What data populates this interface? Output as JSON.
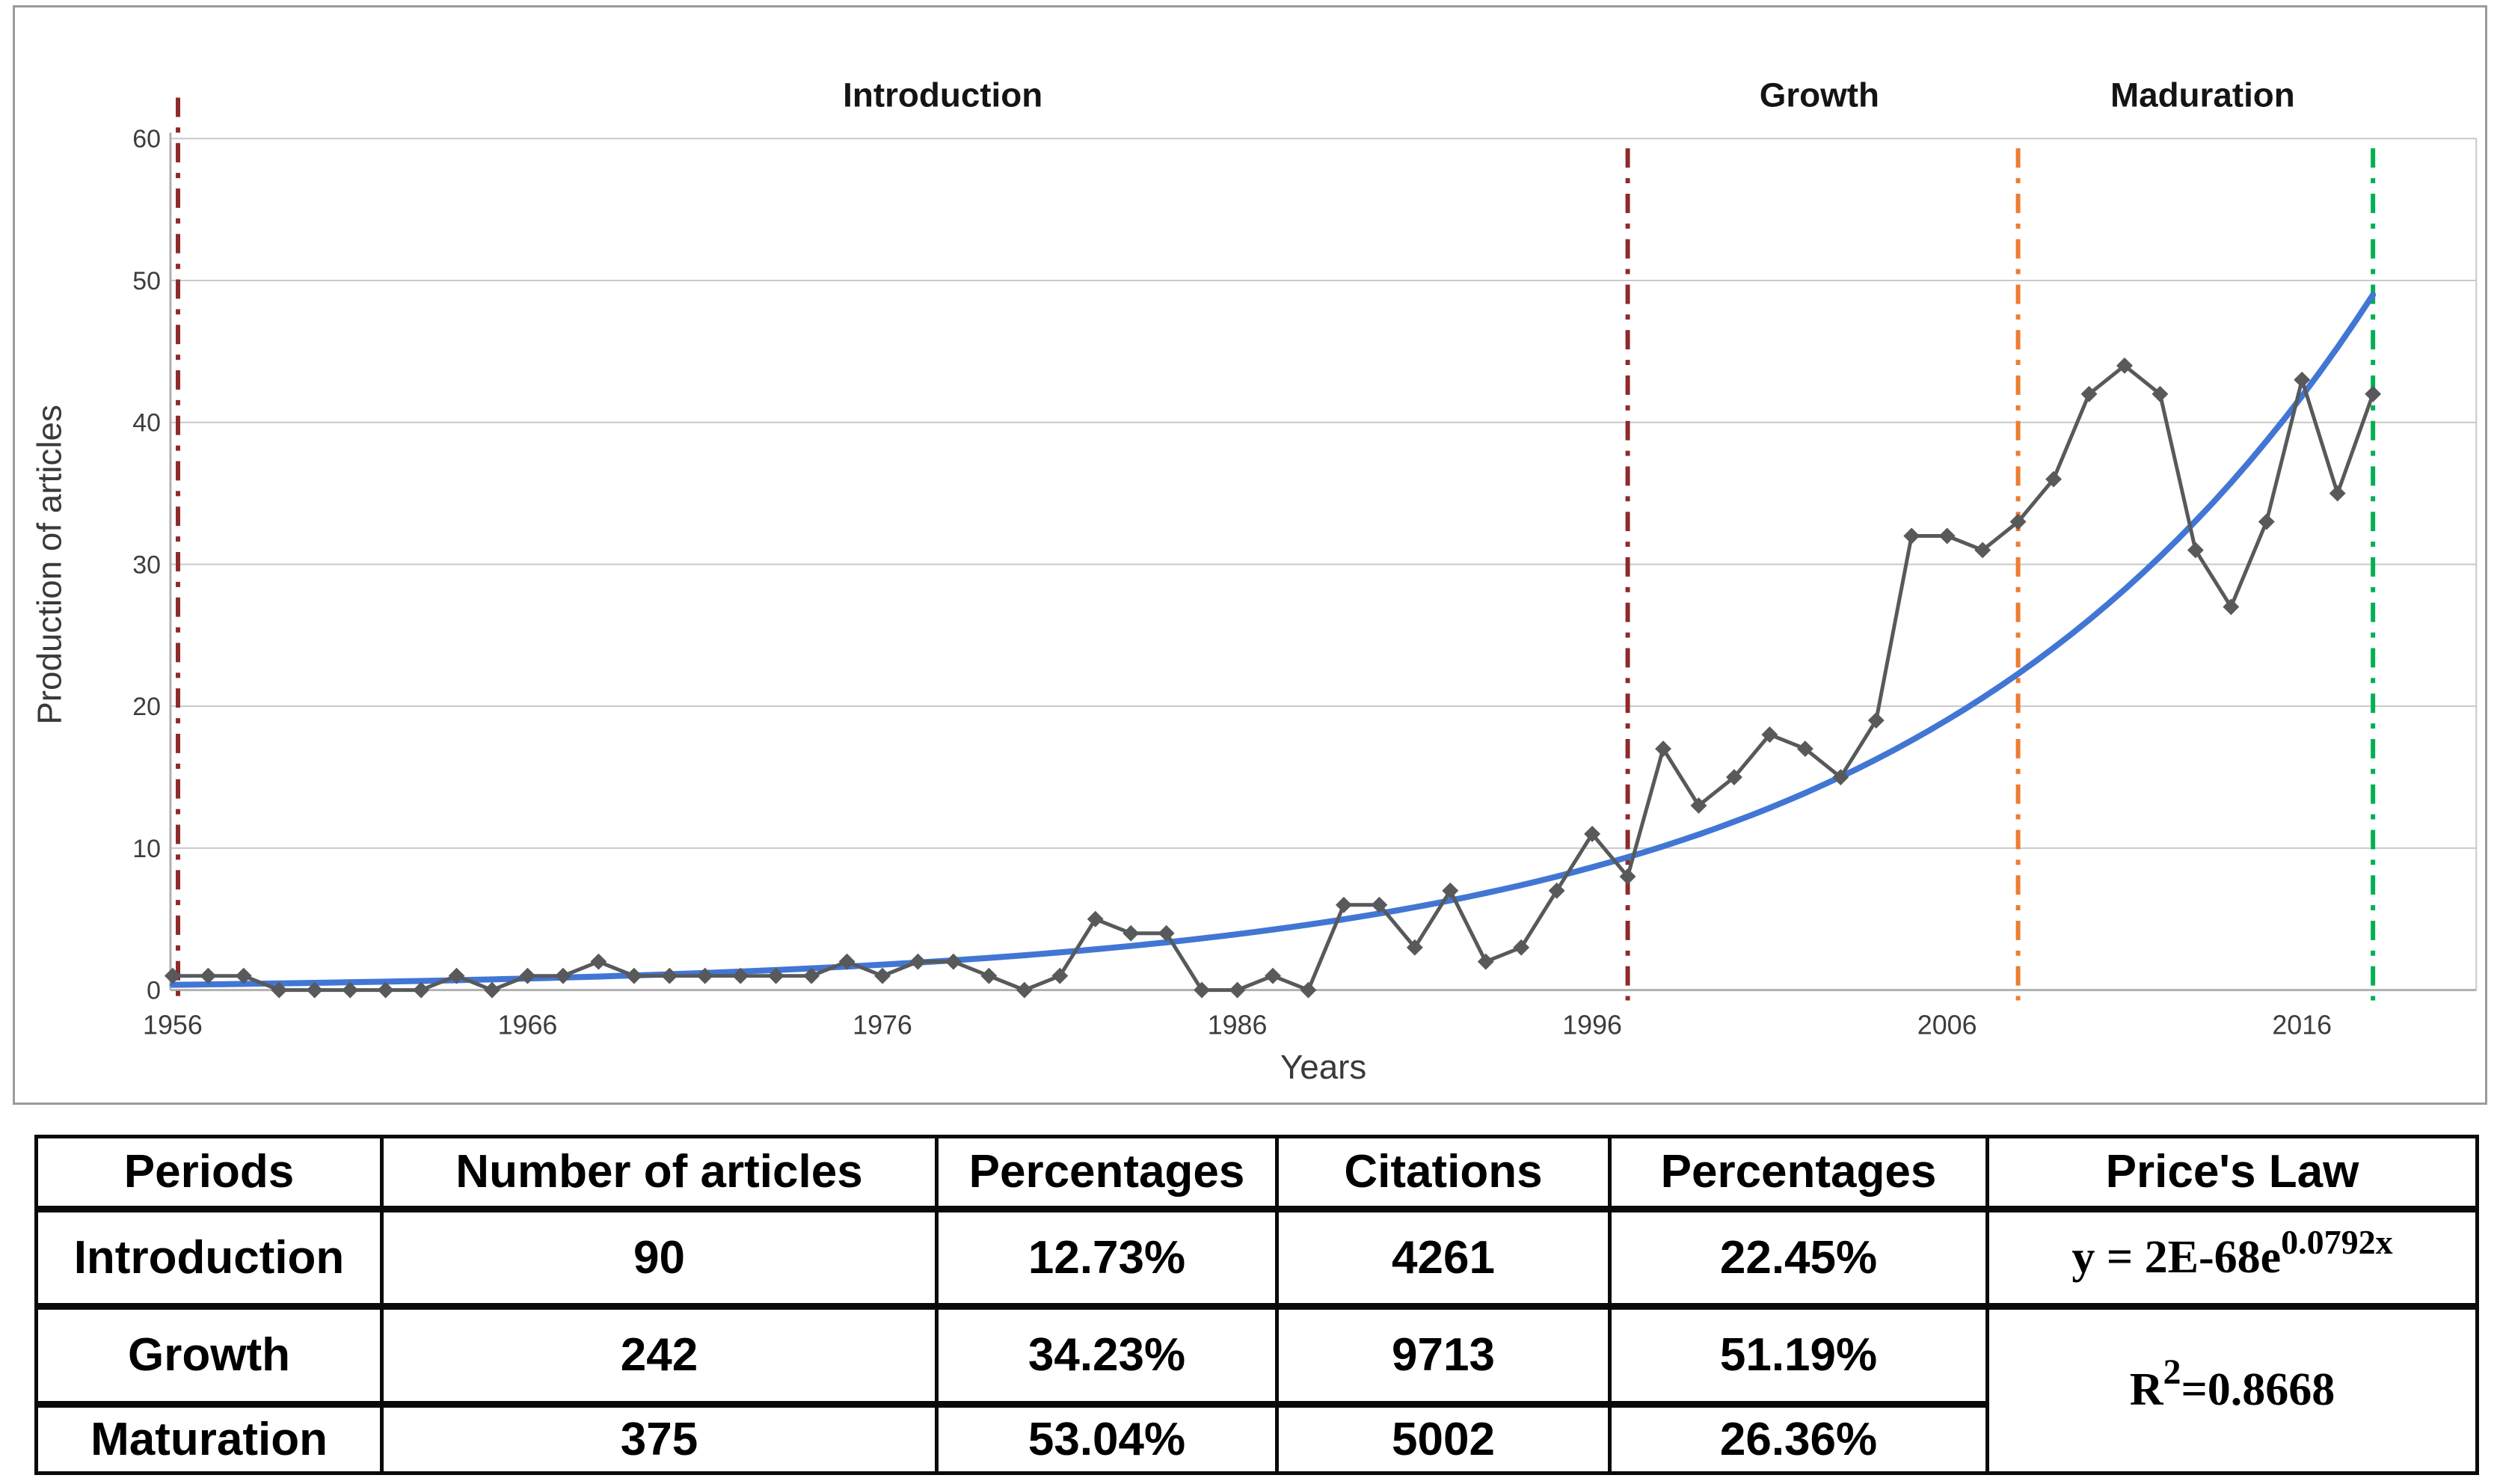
{
  "chart_data": {
    "type": "line",
    "title": "",
    "xlabel": "Years",
    "ylabel": "Production of articles",
    "ylim": [
      0,
      62
    ],
    "yticks": [
      0,
      10,
      20,
      30,
      40,
      50,
      60
    ],
    "xticks": [
      1956,
      1966,
      1976,
      1986,
      1996,
      2006,
      2016
    ],
    "grid": "horizontal",
    "years": [
      1956,
      1957,
      1958,
      1959,
      1960,
      1961,
      1962,
      1963,
      1964,
      1965,
      1966,
      1967,
      1968,
      1969,
      1970,
      1971,
      1972,
      1973,
      1974,
      1975,
      1976,
      1977,
      1978,
      1979,
      1980,
      1981,
      1982,
      1983,
      1984,
      1985,
      1986,
      1987,
      1988,
      1989,
      1990,
      1991,
      1992,
      1993,
      1994,
      1995,
      1996,
      1997,
      1998,
      1999,
      2000,
      2001,
      2002,
      2003,
      2004,
      2005,
      2006,
      2007,
      2008,
      2009,
      2010,
      2011,
      2012,
      2013,
      2014,
      2015,
      2016,
      2017,
      2018
    ],
    "series": [
      {
        "name": "Production of articles per year",
        "color": "#58595B",
        "marker": "diamond",
        "values": [
          1,
          1,
          1,
          0,
          0,
          0,
          0,
          0,
          1,
          0,
          1,
          1,
          2,
          1,
          1,
          1,
          1,
          1,
          1,
          2,
          1,
          2,
          2,
          1,
          0,
          1,
          5,
          4,
          4,
          0,
          0,
          1,
          0,
          6,
          6,
          3,
          7,
          2,
          3,
          7,
          11,
          8,
          17,
          13,
          15,
          18,
          17,
          15,
          19,
          32,
          32,
          31,
          33,
          36,
          42,
          44,
          42,
          31,
          27,
          33,
          43,
          35,
          42
        ]
      }
    ],
    "trendline": {
      "name": "Price's Law exponential fit",
      "color": "#4176D4",
      "formula": "y = 2E-68e^0.0792x",
      "r2": "0.8668",
      "start_year": 1956,
      "start_value": 0.37,
      "end_year": 2018,
      "end_value": 49
    },
    "phase_lines": [
      {
        "year": 1956.15,
        "color": "#8E2A2A",
        "style": "dash-dot",
        "top": 121
      },
      {
        "year": 1997,
        "color": "#8E2A2A",
        "style": "dash-dot",
        "top": 189
      },
      {
        "year": 2008,
        "color": "#ED7D31",
        "style": "dash-dot",
        "top": 189
      },
      {
        "year": 2018,
        "color": "#00B050",
        "style": "dash-dot",
        "top": 189
      }
    ],
    "phase_labels": [
      {
        "label": "Introduction",
        "center_year": 1977.7
      },
      {
        "label": "Growth",
        "center_year": 2002.4
      },
      {
        "label": "Maduration",
        "center_year": 2013.2
      }
    ],
    "legend": "none"
  },
  "table": {
    "headers": [
      "Periods",
      "Number of articles",
      "Percentages",
      "Citations",
      "Percentages",
      "Price's Law"
    ],
    "rows": [
      {
        "period": "Introduction",
        "articles": "90",
        "articles_pct": "12.73%",
        "citations": "4261",
        "citations_pct": "22.45%"
      },
      {
        "period": "Growth",
        "articles": "242",
        "articles_pct": "34.23%",
        "citations": "9713",
        "citations_pct": "51.19%"
      },
      {
        "period": "Maturation",
        "articles": "375",
        "articles_pct": "53.04%",
        "citations": "5002",
        "citations_pct": "26.36%"
      }
    ],
    "price_law": {
      "formula_base": "y = 2E-68e",
      "formula_exponent": "0.0792x",
      "r_label": "R",
      "r_sup": "2",
      "r_value": "=0.8668"
    }
  }
}
